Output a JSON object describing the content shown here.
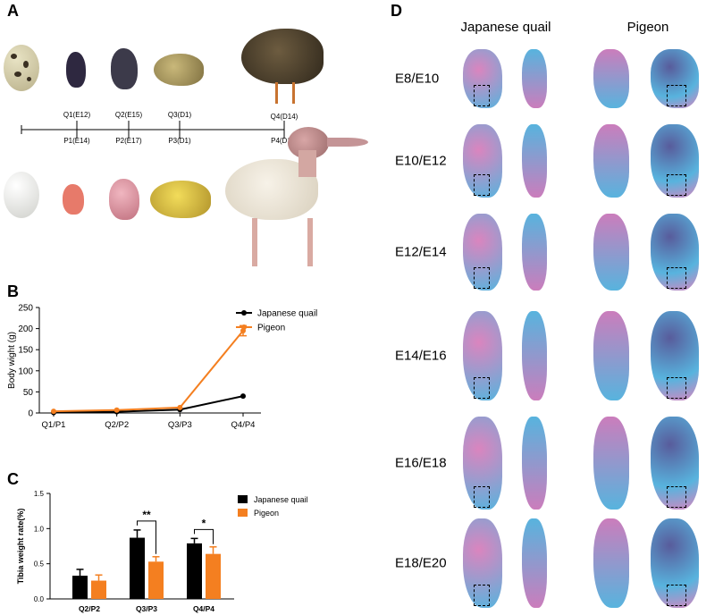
{
  "panels": {
    "a": "A",
    "b": "B",
    "c": "C",
    "d": "D"
  },
  "timeline": {
    "quail_labels": [
      "Q1(E12)",
      "Q2(E15)",
      "Q3(D1)",
      "Q4(D14)"
    ],
    "pigeon_labels": [
      "P1(E14)",
      "P2(E17)",
      "P3(D1)",
      "P4(D14)"
    ]
  },
  "panel_d": {
    "col_quail": "Japanese quail",
    "col_pigeon": "Pigeon",
    "rows": [
      "E8/E10",
      "E10/E12",
      "E12/E14",
      "E14/E16",
      "E16/E18",
      "E18/E20"
    ]
  },
  "colors": {
    "quail": "#000000",
    "pigeon": "#f47f20"
  },
  "chart_data": [
    {
      "type": "line",
      "categories": [
        "Q1/P1",
        "Q2/P2",
        "Q3/P3",
        "Q4/P4"
      ],
      "ylabel": "Body wight (g)",
      "ylim": [
        0,
        250
      ],
      "yticks": [
        "0",
        "50",
        "100",
        "150",
        "200",
        "250"
      ],
      "legend_position": "top-right",
      "series": [
        {
          "name": "Japanese quail",
          "values": [
            1,
            3,
            8,
            40
          ],
          "errors": [
            0,
            0,
            0,
            0
          ]
        },
        {
          "name": "Pigeon",
          "values": [
            4,
            7,
            13,
            195
          ],
          "errors": [
            0,
            0,
            0,
            12
          ]
        }
      ]
    },
    {
      "type": "bar",
      "categories": [
        "Q2/P2",
        "Q3/P3",
        "Q4/P4"
      ],
      "ylabel": "Tibia weight rate(%)",
      "ylim": [
        0,
        1.5
      ],
      "yticks": [
        "0.0",
        "0.5",
        "1.0",
        "1.5"
      ],
      "legend_position": "top-right",
      "series": [
        {
          "name": "Japanese quail",
          "values": [
            0.33,
            0.87,
            0.79
          ],
          "errors": [
            0.09,
            0.11,
            0.07
          ]
        },
        {
          "name": "Pigeon",
          "values": [
            0.26,
            0.53,
            0.64
          ],
          "errors": [
            0.08,
            0.07,
            0.1
          ]
        }
      ],
      "significance": [
        {
          "category": "Q3/P3",
          "label": "**"
        },
        {
          "category": "Q4/P4",
          "label": "*"
        }
      ]
    }
  ]
}
